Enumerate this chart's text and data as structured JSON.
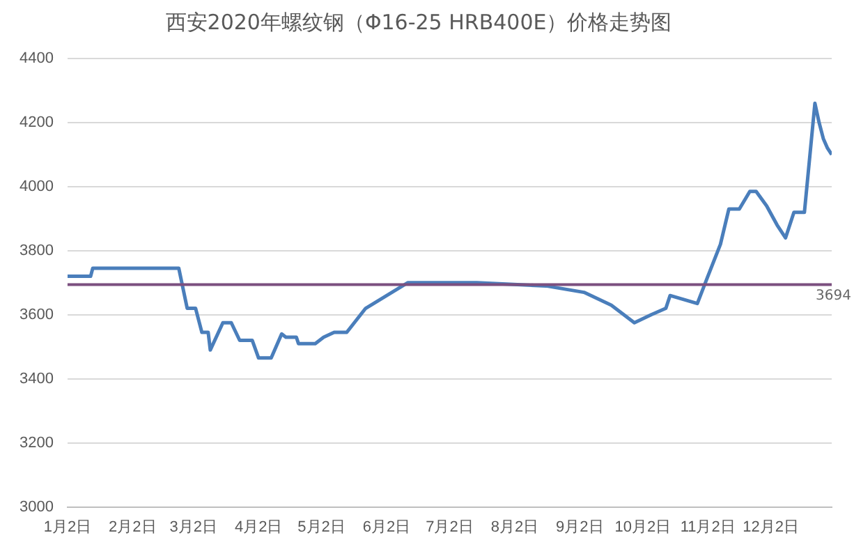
{
  "chart_data": {
    "type": "line",
    "title": "西安2020年螺纹钢（Φ16-25 HRB400E）价格走势图",
    "x": [
      "--01-02",
      "--01-13",
      "--01-14",
      "--02-24",
      "--02-28",
      "--03-03",
      "--03-06",
      "--03-09",
      "--03-10",
      "--03-16",
      "--03-20",
      "--03-24",
      "--03-30",
      "--04-02",
      "--04-08",
      "--04-13",
      "--04-15",
      "--04-20",
      "--04-21",
      "--04-29",
      "--05-03",
      "--05-08",
      "--05-14",
      "--05-23",
      "--06-12",
      "--07-15",
      "--08-17",
      "--09-04",
      "--09-17",
      "--09-28",
      "--10-06",
      "--10-13",
      "--10-15",
      "--10-28",
      "--11-02",
      "--11-08",
      "--11-12",
      "--11-17",
      "--11-22",
      "--11-25",
      "--11-30",
      "--12-05",
      "--12-09",
      "--12-13",
      "--12-18",
      "--12-23",
      "--12-25",
      "--12-27",
      "--12-29",
      "--12-31"
    ],
    "series": [
      {
        "color": "#4a7ebb",
        "values": [
          3720,
          3720,
          3745,
          3745,
          3620,
          3620,
          3545,
          3545,
          3490,
          3575,
          3575,
          3520,
          3520,
          3465,
          3465,
          3540,
          3530,
          3530,
          3510,
          3510,
          3530,
          3545,
          3545,
          3620,
          3700,
          3700,
          3690,
          3670,
          3630,
          3575,
          3600,
          3620,
          3660,
          3635,
          3720,
          3820,
          3930,
          3930,
          3985,
          3985,
          3940,
          3880,
          3840,
          3920,
          3920,
          4260,
          4200,
          4150,
          4120,
          4100
        ]
      }
    ],
    "xlim": [
      "--01-02",
      "--12-31"
    ],
    "xticks": [
      {
        "value": "--01-02",
        "label": "1月2日"
      },
      {
        "value": "--02-02",
        "label": "2月2日"
      },
      {
        "value": "--03-02",
        "label": "3月2日"
      },
      {
        "value": "--04-02",
        "label": "4月2日"
      },
      {
        "value": "--05-02",
        "label": "5月2日"
      },
      {
        "value": "--06-02",
        "label": "6月2日"
      },
      {
        "value": "--07-02",
        "label": "7月2日"
      },
      {
        "value": "--08-02",
        "label": "8月2日"
      },
      {
        "value": "--09-02",
        "label": "9月2日"
      },
      {
        "value": "--10-02",
        "label": "10月2日"
      },
      {
        "value": "--11-02",
        "label": "11月2日"
      },
      {
        "value": "--12-02",
        "label": "12月2日"
      }
    ],
    "ylim": [
      3000,
      4400
    ],
    "yticks": [
      3000,
      3200,
      3400,
      3600,
      3800,
      4000,
      4200,
      4400
    ],
    "ref_lines": [
      {
        "axis": "y",
        "value": 3694,
        "label": "3694",
        "color": "#7b4f7f"
      }
    ],
    "grid": "y",
    "legend": false,
    "marker": "none",
    "line_style": "solid"
  }
}
